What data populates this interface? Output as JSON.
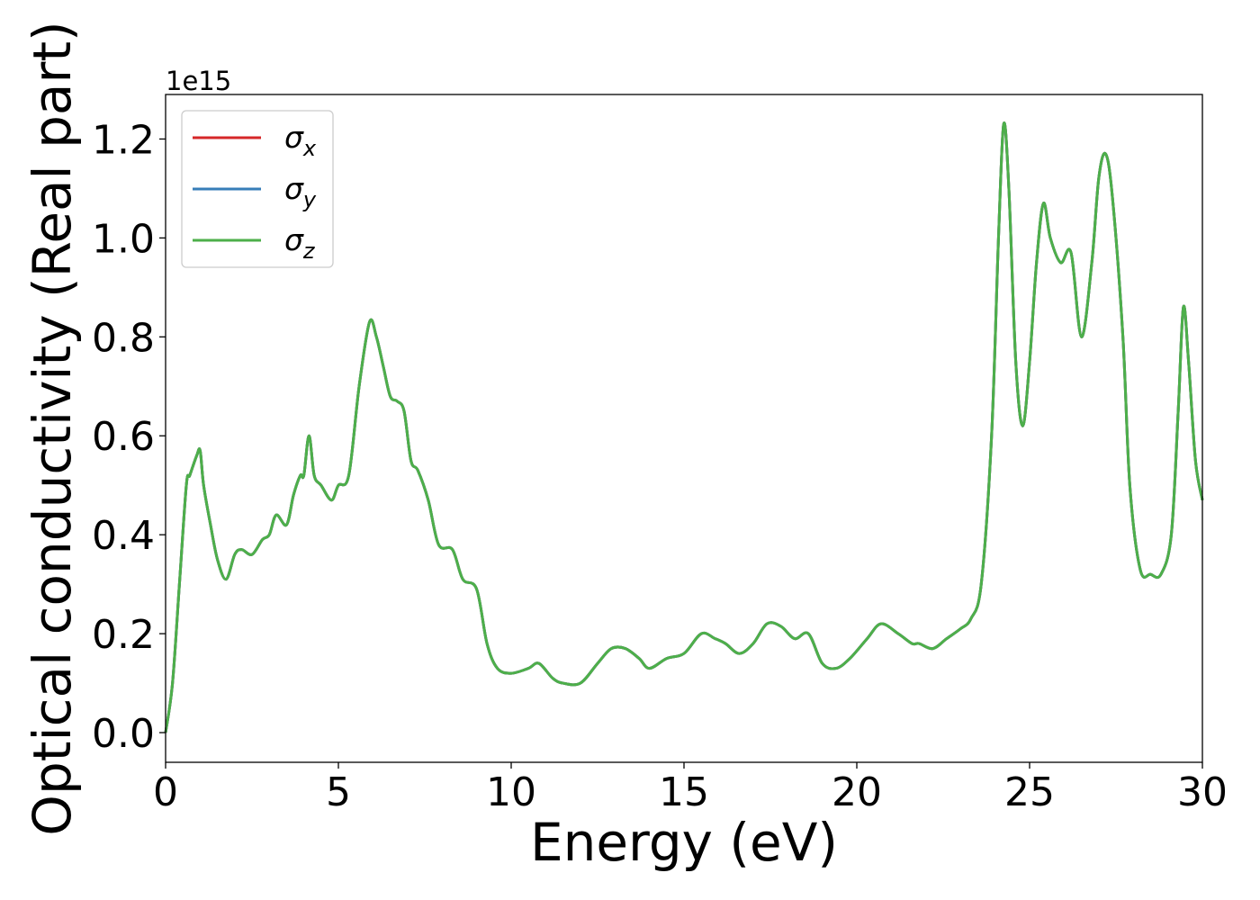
{
  "chart_data": {
    "type": "line",
    "title": "",
    "xlabel": "Energy (eV)",
    "ylabel": "Optical conductivity (Real part)",
    "y_offset_text": "1e15",
    "xlim": [
      0,
      30
    ],
    "ylim": [
      -0.06,
      1.29
    ],
    "y_scale_factor": 1000000000000000.0,
    "xticks": [
      0,
      5,
      10,
      15,
      20,
      25,
      30
    ],
    "xtick_labels": [
      "0",
      "5",
      "10",
      "15",
      "20",
      "25",
      "30"
    ],
    "yticks": [
      0.0,
      0.2,
      0.4,
      0.6,
      0.8,
      1.0,
      1.2
    ],
    "ytick_labels": [
      "0.0",
      "0.2",
      "0.4",
      "0.6",
      "0.8",
      "1.0",
      "1.2"
    ],
    "grid": false,
    "legend_position": "upper-left",
    "series": [
      {
        "name": "σ_x",
        "color": "#d62728",
        "label_base": "σ",
        "label_sub": "x",
        "x": [
          0,
          0.2,
          0.4,
          0.6,
          0.7,
          0.9,
          1.0,
          1.1,
          1.3,
          1.5,
          1.75,
          2.0,
          2.2,
          2.5,
          2.8,
          3.0,
          3.2,
          3.5,
          3.7,
          3.9,
          4.0,
          4.15,
          4.3,
          4.5,
          4.8,
          5.0,
          5.3,
          5.6,
          5.9,
          6.1,
          6.3,
          6.5,
          6.7,
          6.9,
          7.1,
          7.3,
          7.6,
          7.9,
          8.3,
          8.6,
          9.0,
          9.3,
          9.6,
          10.0,
          10.5,
          10.8,
          11.2,
          11.5,
          12.0,
          12.5,
          12.9,
          13.3,
          13.7,
          14.0,
          14.5,
          15.0,
          15.5,
          15.9,
          16.2,
          16.6,
          17.0,
          17.4,
          17.8,
          18.2,
          18.6,
          19.0,
          19.4,
          19.8,
          20.3,
          20.7,
          21.2,
          21.6,
          21.8,
          22.2,
          22.6,
          23.0,
          23.3,
          23.6,
          23.9,
          24.1,
          24.25,
          24.4,
          24.6,
          24.8,
          25.0,
          25.2,
          25.4,
          25.6,
          25.9,
          26.2,
          26.5,
          26.8,
          27.0,
          27.2,
          27.4,
          27.7,
          27.9,
          28.2,
          28.5,
          28.8,
          29.1,
          29.3,
          29.45,
          29.6,
          29.8,
          30.0
        ],
        "values": [
          0.0,
          0.1,
          0.3,
          0.5,
          0.52,
          0.56,
          0.57,
          0.5,
          0.42,
          0.35,
          0.31,
          0.36,
          0.37,
          0.36,
          0.39,
          0.4,
          0.44,
          0.42,
          0.48,
          0.52,
          0.52,
          0.6,
          0.52,
          0.5,
          0.47,
          0.5,
          0.52,
          0.7,
          0.83,
          0.8,
          0.74,
          0.68,
          0.67,
          0.65,
          0.55,
          0.53,
          0.47,
          0.38,
          0.37,
          0.31,
          0.29,
          0.18,
          0.13,
          0.12,
          0.13,
          0.14,
          0.11,
          0.1,
          0.1,
          0.14,
          0.17,
          0.17,
          0.15,
          0.13,
          0.15,
          0.16,
          0.2,
          0.19,
          0.18,
          0.16,
          0.18,
          0.22,
          0.215,
          0.19,
          0.2,
          0.14,
          0.13,
          0.15,
          0.19,
          0.22,
          0.2,
          0.18,
          0.18,
          0.17,
          0.19,
          0.21,
          0.23,
          0.3,
          0.6,
          1.0,
          1.23,
          1.1,
          0.75,
          0.62,
          0.75,
          0.95,
          1.07,
          1.0,
          0.95,
          0.97,
          0.8,
          0.95,
          1.12,
          1.17,
          1.08,
          0.8,
          0.5,
          0.33,
          0.32,
          0.32,
          0.4,
          0.65,
          0.86,
          0.75,
          0.55,
          0.47
        ]
      },
      {
        "name": "σ_y",
        "color": "#377eb8",
        "label_base": "σ",
        "label_sub": "y",
        "x": [
          0,
          0.2,
          0.4,
          0.6,
          0.7,
          0.9,
          1.0,
          1.1,
          1.3,
          1.5,
          1.75,
          2.0,
          2.2,
          2.5,
          2.8,
          3.0,
          3.2,
          3.5,
          3.7,
          3.9,
          4.0,
          4.15,
          4.3,
          4.5,
          4.8,
          5.0,
          5.3,
          5.6,
          5.9,
          6.1,
          6.3,
          6.5,
          6.7,
          6.9,
          7.1,
          7.3,
          7.6,
          7.9,
          8.3,
          8.6,
          9.0,
          9.3,
          9.6,
          10.0,
          10.5,
          10.8,
          11.2,
          11.5,
          12.0,
          12.5,
          12.9,
          13.3,
          13.7,
          14.0,
          14.5,
          15.0,
          15.5,
          15.9,
          16.2,
          16.6,
          17.0,
          17.4,
          17.8,
          18.2,
          18.6,
          19.0,
          19.4,
          19.8,
          20.3,
          20.7,
          21.2,
          21.6,
          21.8,
          22.2,
          22.6,
          23.0,
          23.3,
          23.6,
          23.9,
          24.1,
          24.25,
          24.4,
          24.6,
          24.8,
          25.0,
          25.2,
          25.4,
          25.6,
          25.9,
          26.2,
          26.5,
          26.8,
          27.0,
          27.2,
          27.4,
          27.7,
          27.9,
          28.2,
          28.5,
          28.8,
          29.1,
          29.3,
          29.45,
          29.6,
          29.8,
          30.0
        ],
        "values": [
          0.0,
          0.1,
          0.3,
          0.5,
          0.52,
          0.56,
          0.57,
          0.5,
          0.42,
          0.35,
          0.31,
          0.36,
          0.37,
          0.36,
          0.39,
          0.4,
          0.44,
          0.42,
          0.48,
          0.52,
          0.52,
          0.6,
          0.52,
          0.5,
          0.47,
          0.5,
          0.52,
          0.7,
          0.83,
          0.8,
          0.74,
          0.68,
          0.67,
          0.65,
          0.55,
          0.53,
          0.47,
          0.38,
          0.37,
          0.31,
          0.29,
          0.18,
          0.13,
          0.12,
          0.13,
          0.14,
          0.11,
          0.1,
          0.1,
          0.14,
          0.17,
          0.17,
          0.15,
          0.13,
          0.15,
          0.16,
          0.2,
          0.19,
          0.18,
          0.16,
          0.18,
          0.22,
          0.215,
          0.19,
          0.2,
          0.14,
          0.13,
          0.15,
          0.19,
          0.22,
          0.2,
          0.18,
          0.18,
          0.17,
          0.19,
          0.21,
          0.23,
          0.3,
          0.6,
          1.0,
          1.23,
          1.1,
          0.75,
          0.62,
          0.75,
          0.95,
          1.07,
          1.0,
          0.95,
          0.97,
          0.8,
          0.95,
          1.12,
          1.17,
          1.08,
          0.8,
          0.5,
          0.33,
          0.32,
          0.32,
          0.4,
          0.65,
          0.86,
          0.75,
          0.55,
          0.47
        ]
      },
      {
        "name": "σ_z",
        "color": "#4daf4a",
        "label_base": "σ",
        "label_sub": "z",
        "x": [
          0,
          0.2,
          0.4,
          0.6,
          0.7,
          0.9,
          1.0,
          1.1,
          1.3,
          1.5,
          1.75,
          2.0,
          2.2,
          2.5,
          2.8,
          3.0,
          3.2,
          3.5,
          3.7,
          3.9,
          4.0,
          4.15,
          4.3,
          4.5,
          4.8,
          5.0,
          5.3,
          5.6,
          5.9,
          6.1,
          6.3,
          6.5,
          6.7,
          6.9,
          7.1,
          7.3,
          7.6,
          7.9,
          8.3,
          8.6,
          9.0,
          9.3,
          9.6,
          10.0,
          10.5,
          10.8,
          11.2,
          11.5,
          12.0,
          12.5,
          12.9,
          13.3,
          13.7,
          14.0,
          14.5,
          15.0,
          15.5,
          15.9,
          16.2,
          16.6,
          17.0,
          17.4,
          17.8,
          18.2,
          18.6,
          19.0,
          19.4,
          19.8,
          20.3,
          20.7,
          21.2,
          21.6,
          21.8,
          22.2,
          22.6,
          23.0,
          23.3,
          23.6,
          23.9,
          24.1,
          24.25,
          24.4,
          24.6,
          24.8,
          25.0,
          25.2,
          25.4,
          25.6,
          25.9,
          26.2,
          26.5,
          26.8,
          27.0,
          27.2,
          27.4,
          27.7,
          27.9,
          28.2,
          28.5,
          28.8,
          29.1,
          29.3,
          29.45,
          29.6,
          29.8,
          30.0
        ],
        "values": [
          0.0,
          0.1,
          0.3,
          0.5,
          0.52,
          0.56,
          0.57,
          0.5,
          0.42,
          0.35,
          0.31,
          0.36,
          0.37,
          0.36,
          0.39,
          0.4,
          0.44,
          0.42,
          0.48,
          0.52,
          0.52,
          0.6,
          0.52,
          0.5,
          0.47,
          0.5,
          0.52,
          0.7,
          0.83,
          0.8,
          0.74,
          0.68,
          0.67,
          0.65,
          0.55,
          0.53,
          0.47,
          0.38,
          0.37,
          0.31,
          0.29,
          0.18,
          0.13,
          0.12,
          0.13,
          0.14,
          0.11,
          0.1,
          0.1,
          0.14,
          0.17,
          0.17,
          0.15,
          0.13,
          0.15,
          0.16,
          0.2,
          0.19,
          0.18,
          0.16,
          0.18,
          0.22,
          0.215,
          0.19,
          0.2,
          0.14,
          0.13,
          0.15,
          0.19,
          0.22,
          0.2,
          0.18,
          0.18,
          0.17,
          0.19,
          0.21,
          0.23,
          0.3,
          0.6,
          1.0,
          1.23,
          1.1,
          0.75,
          0.62,
          0.75,
          0.95,
          1.07,
          1.0,
          0.95,
          0.97,
          0.8,
          0.95,
          1.12,
          1.17,
          1.08,
          0.8,
          0.5,
          0.33,
          0.32,
          0.32,
          0.4,
          0.65,
          0.86,
          0.75,
          0.55,
          0.47
        ]
      }
    ]
  }
}
